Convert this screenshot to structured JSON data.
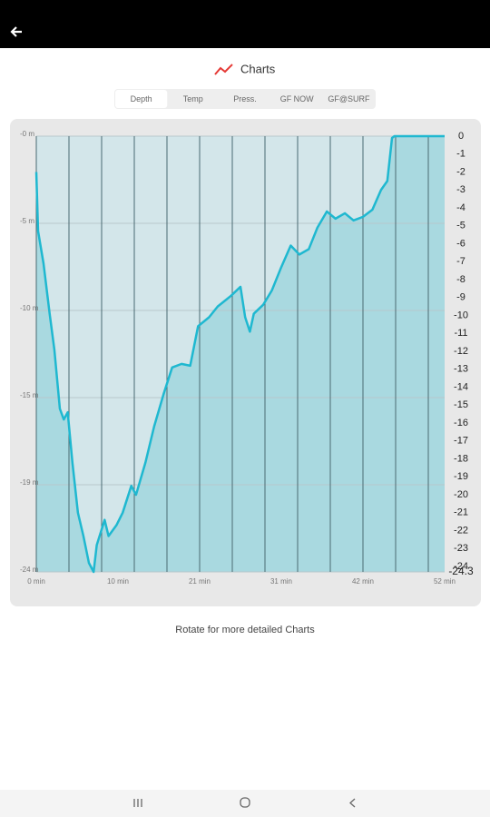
{
  "title": "Charts",
  "tabs": [
    "Depth",
    "Temp",
    "Press.",
    "GF NOW",
    "GF@SURF"
  ],
  "selected_tab_index": 0,
  "footer_note": "Rotate for more detailed Charts",
  "chart_data": {
    "type": "area",
    "color": "#1fb8d0",
    "fill_color": "#a9d9e0",
    "background_color": "#d3e6ea",
    "x": [
      0,
      0.23,
      0.92,
      1.7,
      2.3,
      3.0,
      3.5,
      4.0,
      4.6,
      5.3,
      6.0,
      6.7,
      7.3,
      7.7,
      8.7,
      9.2,
      10.2,
      11.0,
      12.1,
      12.7,
      13.9,
      15.0,
      16.2,
      17.3,
      18.5,
      19.6,
      20.6,
      22.0,
      23.1,
      24.8,
      26.0,
      26.6,
      27.2,
      27.7,
      28.9,
      30.0,
      31.2,
      32.4,
      33.5,
      34.7,
      35.8,
      37.0,
      38.1,
      39.3,
      40.4,
      41.6,
      42.8,
      43.9,
      44.7,
      45.3,
      45.6,
      52
    ],
    "values": [
      -2.0,
      -5.3,
      -7.1,
      -9.9,
      -11.9,
      -15.2,
      -15.8,
      -15.4,
      -18.2,
      -21.0,
      -22.3,
      -23.8,
      -24.3,
      -22.8,
      -21.4,
      -22.3,
      -21.7,
      -21.0,
      -19.5,
      -20.0,
      -18.2,
      -16.2,
      -14.4,
      -12.9,
      -12.7,
      -12.8,
      -10.6,
      -10.1,
      -9.5,
      -8.9,
      -8.4,
      -10.1,
      -10.9,
      -9.9,
      -9.4,
      -8.6,
      -7.3,
      -6.1,
      -6.6,
      -6.3,
      -5.1,
      -4.2,
      -4.6,
      -4.3,
      -4.7,
      -4.5,
      -4.1,
      -3.0,
      -2.5,
      -0.1,
      0,
      0
    ],
    "xlim": [
      0,
      52
    ],
    "xticks": [
      {
        "value": 0,
        "label": "0 min"
      },
      {
        "value": 10.4,
        "label": "10 min"
      },
      {
        "value": 20.8,
        "label": "21 min"
      },
      {
        "value": 31.2,
        "label": "31 min"
      },
      {
        "value": 41.6,
        "label": "42 min"
      },
      {
        "value": 52,
        "label": "52 min"
      }
    ],
    "xgrid": [
      0,
      4.16,
      8.32,
      12.48,
      16.64,
      20.8,
      24.96,
      29.12,
      33.28,
      37.44,
      41.6,
      45.76,
      49.92
    ],
    "ylim": [
      -24.3,
      0
    ],
    "yticks": [
      {
        "value": 0,
        "label": "-0 m"
      },
      {
        "value": -4.86,
        "label": "-5 m"
      },
      {
        "value": -9.72,
        "label": "-10 m"
      },
      {
        "value": -14.58,
        "label": "-15 m"
      },
      {
        "value": -19.44,
        "label": "-19 m"
      },
      {
        "value": -24.3,
        "label": "-24 m"
      }
    ],
    "y2lim": [
      -24.3,
      0
    ],
    "y2ticks": [
      0,
      -1,
      -2,
      -3,
      -4,
      -5,
      -6,
      -7,
      -8,
      -9,
      -10,
      -11,
      -12,
      -13,
      -14,
      -15,
      -16,
      -17,
      -18,
      -19,
      -20,
      -21,
      -22,
      -23,
      -24,
      -24.3
    ]
  }
}
